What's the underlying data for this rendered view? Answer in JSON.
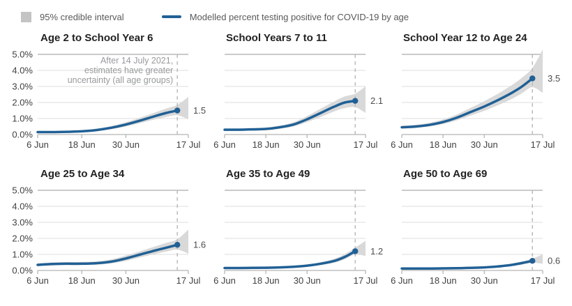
{
  "legend": {
    "ci_label": "95% credible interval",
    "line_label": "Modelled percent testing positive for COVID-19 by age"
  },
  "annotation": {
    "lines": [
      "After 14 July 2021,",
      "estimates have greater",
      "uncertainty (all age groups)"
    ]
  },
  "colors": {
    "line": "#206095",
    "band": "#d9d9d9",
    "legend_swatch": "#c4c4c4",
    "gridline": "#dcdcdc",
    "top_gridline": "#ababab",
    "axis": "#b5b5b5",
    "dashed_line": "#bbbbbb",
    "tick_label": "#414042",
    "end_label": "#4d4d4d",
    "annotation_text": "#97999b",
    "title": "#222222"
  },
  "axes": {
    "y_tick_labels": [
      "5.0%",
      "4.0%",
      "3.0%",
      "2.0%",
      "1.0%",
      "0.0%"
    ],
    "y_tick_values": [
      5,
      4,
      3,
      2,
      1,
      0
    ],
    "ylim": [
      0,
      5
    ],
    "x_tick_labels": [
      "6 Jun",
      "18 Jun",
      "30 Jun",
      "17 Jul"
    ],
    "x_tick_days": [
      0,
      12,
      24,
      41
    ],
    "x_max_day": 41,
    "dashed_line_day": 38
  },
  "chart_data": [
    {
      "type": "line",
      "title": "Age 2 to School Year 6",
      "show_y_labels": true,
      "show_annotation": true,
      "end_label": "1.5",
      "end_value": 1.5,
      "x_days": [
        0,
        4,
        8,
        12,
        16,
        20,
        24,
        28,
        32,
        35,
        38
      ],
      "mean": [
        0.15,
        0.15,
        0.17,
        0.2,
        0.28,
        0.42,
        0.62,
        0.88,
        1.15,
        1.35,
        1.5
      ],
      "lower": [
        0.1,
        0.1,
        0.12,
        0.15,
        0.21,
        0.33,
        0.5,
        0.72,
        0.95,
        1.1,
        1.2
      ],
      "upper": [
        0.21,
        0.21,
        0.23,
        0.27,
        0.37,
        0.53,
        0.77,
        1.06,
        1.38,
        1.62,
        1.85
      ],
      "band_end": {
        "day": 41,
        "lower": 0.95,
        "upper": 2.35
      }
    },
    {
      "type": "line",
      "title": "School Years 7 to 11",
      "show_y_labels": false,
      "show_annotation": false,
      "end_label": "2.1",
      "end_value": 2.1,
      "x_days": [
        0,
        4,
        8,
        12,
        16,
        20,
        24,
        28,
        32,
        35,
        38
      ],
      "mean": [
        0.3,
        0.3,
        0.32,
        0.35,
        0.45,
        0.62,
        0.95,
        1.35,
        1.75,
        2.0,
        2.1
      ],
      "lower": [
        0.23,
        0.23,
        0.25,
        0.28,
        0.36,
        0.5,
        0.78,
        1.1,
        1.45,
        1.65,
        1.7
      ],
      "upper": [
        0.38,
        0.38,
        0.4,
        0.44,
        0.56,
        0.76,
        1.15,
        1.62,
        2.08,
        2.38,
        2.55
      ],
      "band_end": {
        "day": 41,
        "lower": 1.35,
        "upper": 3.0
      }
    },
    {
      "type": "line",
      "title": "School Year 12 to Age 24",
      "show_y_labels": false,
      "show_annotation": false,
      "end_label": "3.5",
      "end_value": 3.5,
      "x_days": [
        0,
        4,
        8,
        12,
        16,
        20,
        24,
        28,
        32,
        35,
        38
      ],
      "mean": [
        0.45,
        0.5,
        0.6,
        0.78,
        1.05,
        1.4,
        1.75,
        2.15,
        2.6,
        3.0,
        3.5
      ],
      "lower": [
        0.37,
        0.41,
        0.5,
        0.65,
        0.88,
        1.18,
        1.48,
        1.83,
        2.22,
        2.58,
        2.95
      ],
      "upper": [
        0.55,
        0.61,
        0.73,
        0.94,
        1.25,
        1.66,
        2.08,
        2.55,
        3.08,
        3.55,
        4.15
      ],
      "band_end": {
        "day": 41,
        "lower": 2.6,
        "upper": 5.3
      }
    },
    {
      "type": "line",
      "title": "Age 25 to Age 34",
      "show_y_labels": true,
      "show_annotation": false,
      "end_label": "1.6",
      "end_value": 1.6,
      "x_days": [
        0,
        4,
        8,
        12,
        16,
        20,
        24,
        28,
        32,
        35,
        38
      ],
      "mean": [
        0.35,
        0.4,
        0.42,
        0.42,
        0.45,
        0.55,
        0.75,
        1.0,
        1.25,
        1.42,
        1.6
      ],
      "lower": [
        0.27,
        0.31,
        0.33,
        0.33,
        0.36,
        0.44,
        0.6,
        0.82,
        1.03,
        1.18,
        1.3
      ],
      "upper": [
        0.45,
        0.5,
        0.52,
        0.53,
        0.57,
        0.69,
        0.93,
        1.21,
        1.5,
        1.72,
        1.95
      ],
      "band_end": {
        "day": 41,
        "lower": 1.05,
        "upper": 2.55
      }
    },
    {
      "type": "line",
      "title": "Age 35 to Age 49",
      "show_y_labels": false,
      "show_annotation": false,
      "end_label": "1.2",
      "end_value": 1.2,
      "x_days": [
        0,
        4,
        8,
        12,
        16,
        20,
        24,
        28,
        32,
        35,
        38
      ],
      "mean": [
        0.15,
        0.15,
        0.16,
        0.17,
        0.19,
        0.23,
        0.3,
        0.42,
        0.6,
        0.85,
        1.2
      ],
      "lower": [
        0.12,
        0.12,
        0.13,
        0.14,
        0.15,
        0.18,
        0.24,
        0.34,
        0.49,
        0.7,
        1.0
      ],
      "upper": [
        0.19,
        0.19,
        0.2,
        0.21,
        0.24,
        0.29,
        0.38,
        0.52,
        0.74,
        1.02,
        1.42
      ],
      "band_end": {
        "day": 41,
        "lower": 0.9,
        "upper": 1.85
      }
    },
    {
      "type": "line",
      "title": "Age 50 to Age 69",
      "show_y_labels": false,
      "show_annotation": false,
      "end_label": "0.6",
      "end_value": 0.6,
      "x_days": [
        0,
        4,
        8,
        12,
        16,
        20,
        24,
        28,
        32,
        35,
        38
      ],
      "mean": [
        0.12,
        0.12,
        0.12,
        0.13,
        0.14,
        0.16,
        0.19,
        0.25,
        0.35,
        0.46,
        0.6
      ],
      "lower": [
        0.09,
        0.09,
        0.09,
        0.1,
        0.11,
        0.13,
        0.15,
        0.2,
        0.28,
        0.37,
        0.48
      ],
      "upper": [
        0.15,
        0.15,
        0.15,
        0.16,
        0.18,
        0.2,
        0.24,
        0.31,
        0.43,
        0.57,
        0.74
      ],
      "band_end": {
        "day": 41,
        "lower": 0.42,
        "upper": 1.0
      }
    }
  ]
}
